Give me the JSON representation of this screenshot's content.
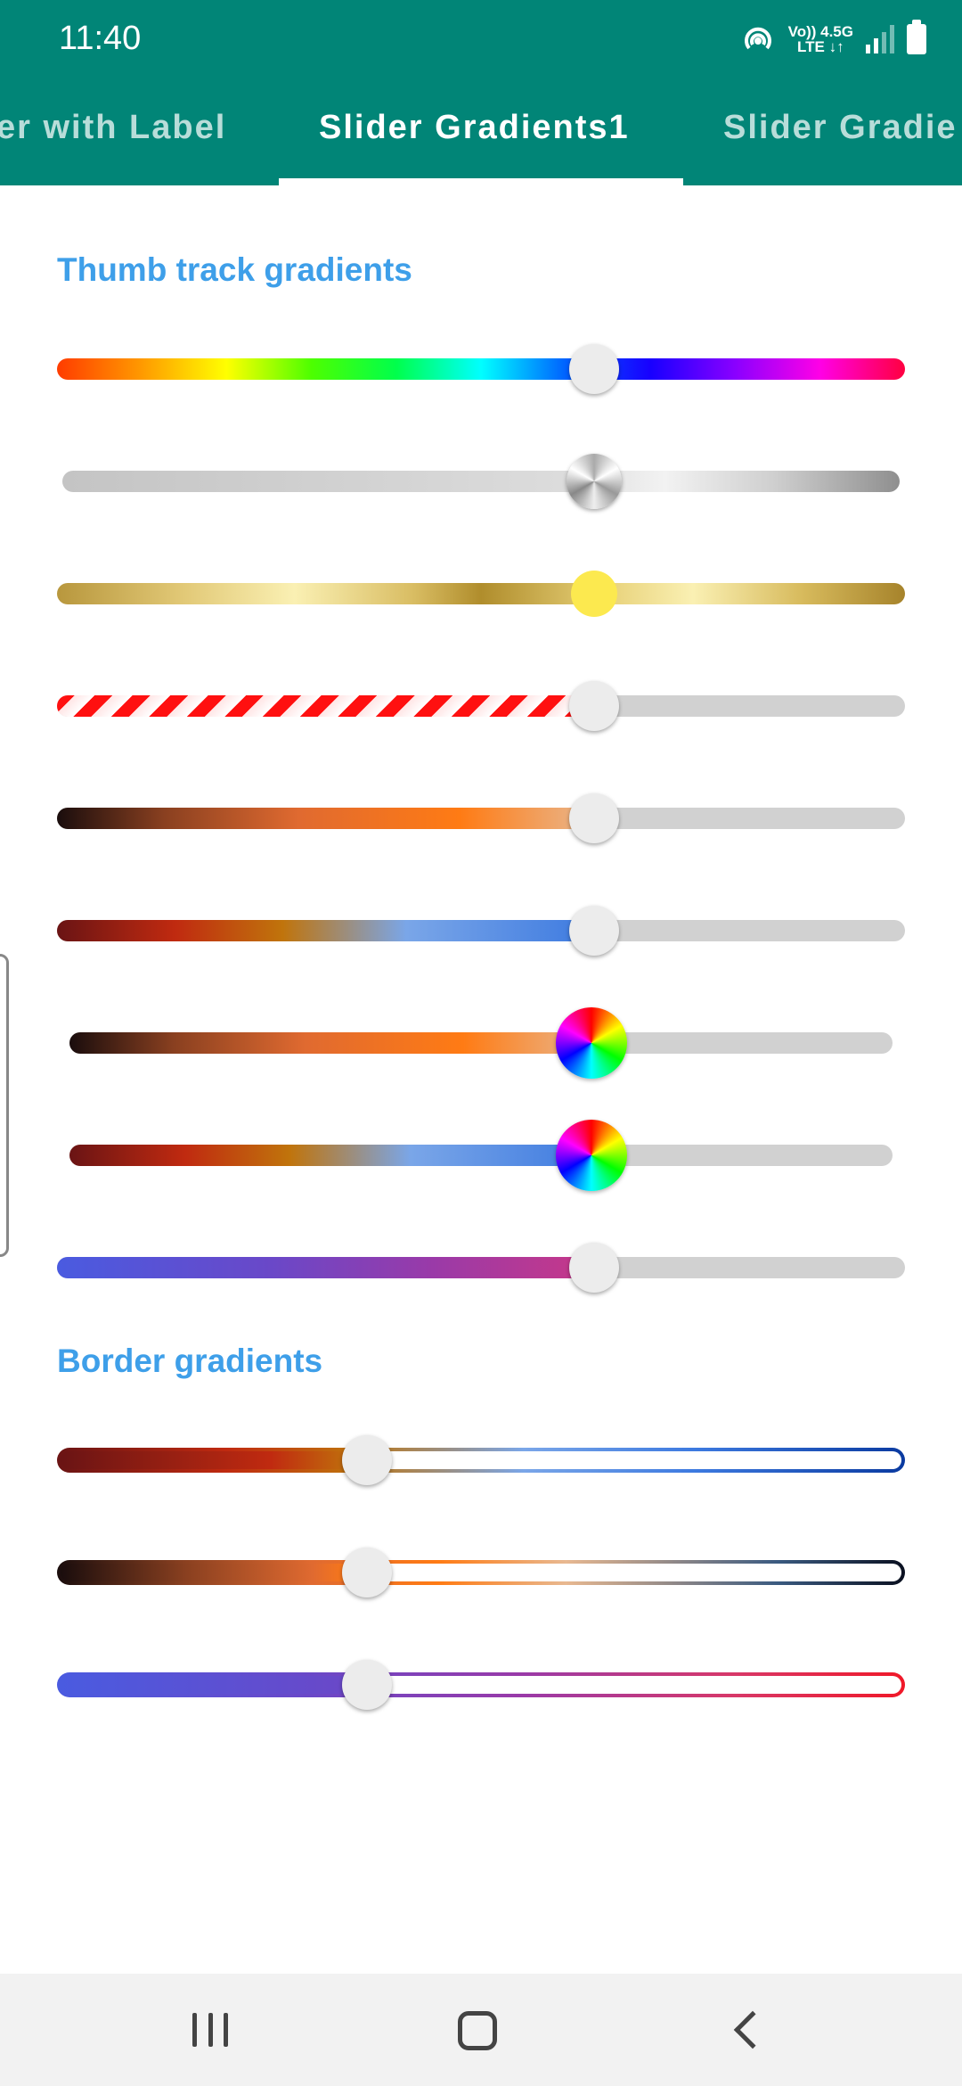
{
  "status_bar": {
    "time": "11:40",
    "net_label_top": "Vo)) 4.5G",
    "net_label_bottom": "LTE ↓↑",
    "icons": [
      "hotspot-icon",
      "volte-icon",
      "signal-icon",
      "battery-icon"
    ]
  },
  "tabs": [
    {
      "label": "er with Label",
      "active": false
    },
    {
      "label": "Slider Gradients1",
      "active": true
    },
    {
      "label": "Slider Gradie",
      "active": false
    }
  ],
  "sections": {
    "thumb_track": "Thumb track gradients",
    "border": "Border gradients"
  },
  "sliders": {
    "thumb_track_value": 0.63,
    "border_value": 0.36
  },
  "colors": {
    "primary": "#018577",
    "section_header": "#3e9fe9",
    "inactive_track": "#d1d1d1",
    "thumb": "#ececec"
  },
  "nav_bar": {
    "buttons": [
      "recent-apps-icon",
      "home-icon",
      "back-icon"
    ]
  }
}
